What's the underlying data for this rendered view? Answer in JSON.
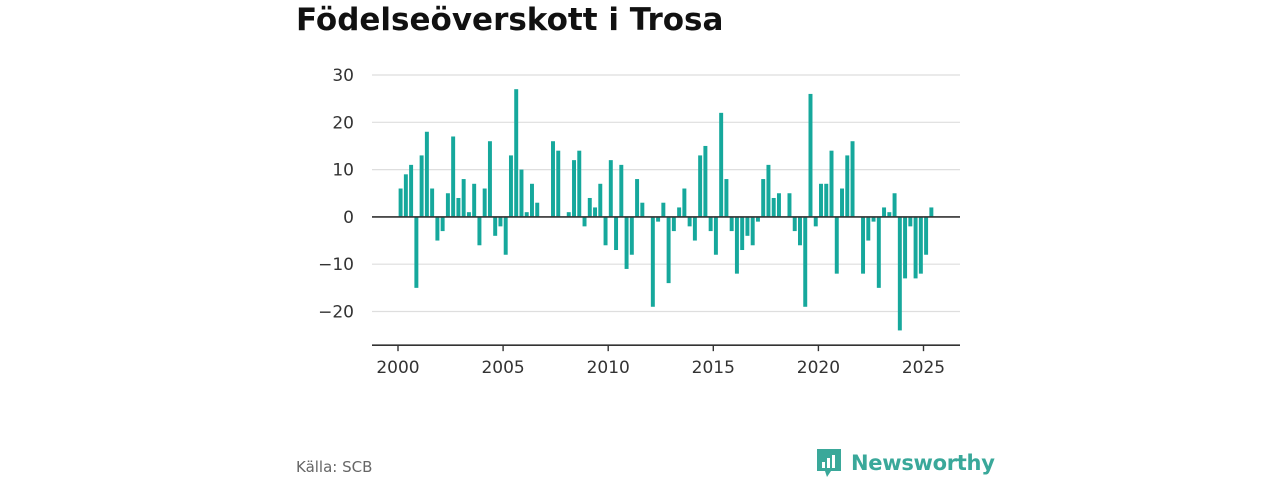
{
  "title": "Födelseöverskott i Trosa",
  "source": "Källa: SCB",
  "brand": {
    "name": "Newsworthy",
    "color": "#3aa89a"
  },
  "chart_data": {
    "type": "bar",
    "color": "#16a89c",
    "ylim": [
      -25,
      30
    ],
    "yticks": [
      30,
      20,
      10,
      0,
      -10,
      -20
    ],
    "ytick_labels": [
      "30",
      "20",
      "10",
      "0",
      "−10",
      "−20"
    ],
    "xticks": [
      2000,
      2005,
      2010,
      2015,
      2020,
      2025
    ],
    "xtick_labels": [
      "2000",
      "2005",
      "2010",
      "2015",
      "2020",
      "2025"
    ],
    "grid": true,
    "start_year": 2000,
    "periods_per_year": 4,
    "values": [
      6,
      9,
      11,
      -15,
      13,
      18,
      6,
      -5,
      -3,
      5,
      17,
      4,
      8,
      1,
      7,
      -6,
      6,
      16,
      -4,
      -2,
      -8,
      13,
      27,
      10,
      1,
      7,
      3,
      0,
      0,
      16,
      14,
      0,
      1,
      12,
      14,
      -2,
      4,
      2,
      7,
      -6,
      12,
      -7,
      11,
      -11,
      -8,
      8,
      3,
      0,
      -19,
      -1,
      3,
      -14,
      -3,
      2,
      6,
      -2,
      -5,
      13,
      15,
      -3,
      -8,
      22,
      8,
      -3,
      -12,
      -7,
      -4,
      -6,
      -1,
      8,
      11,
      4,
      5,
      0,
      5,
      -3,
      -6,
      -19,
      26,
      -2,
      7,
      7,
      14,
      -12,
      6,
      13,
      16,
      0,
      -12,
      -5,
      -1,
      -15,
      2,
      1,
      5,
      -24,
      -13,
      -2,
      -13,
      -12,
      -8,
      2
    ]
  }
}
